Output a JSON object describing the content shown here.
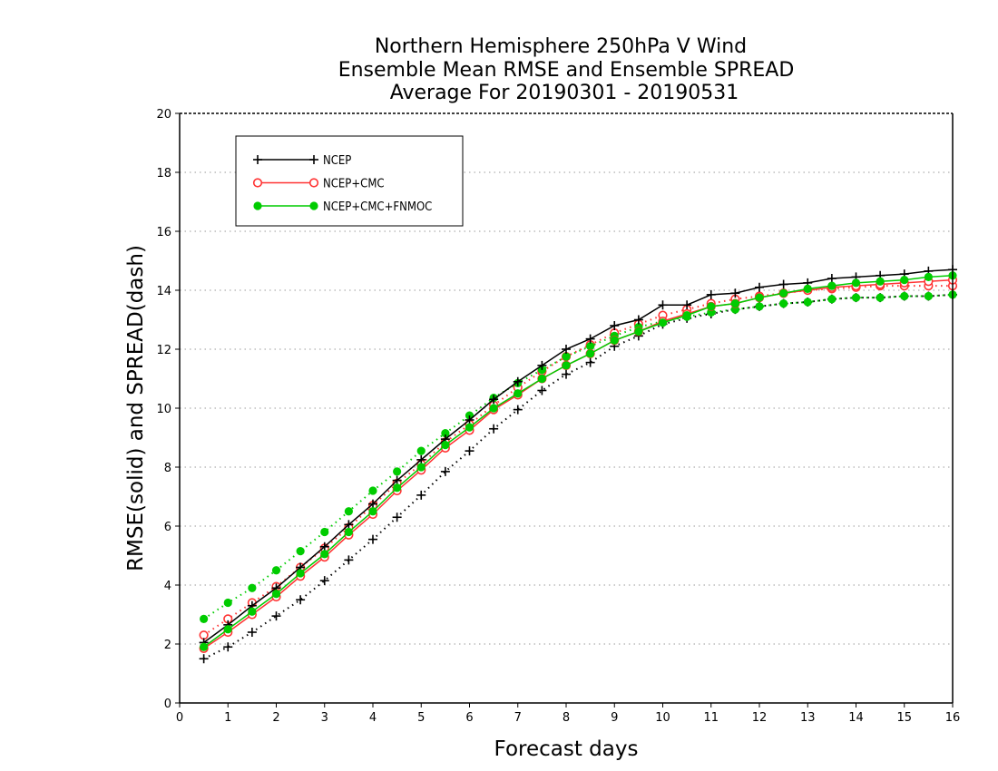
{
  "chart_data": {
    "type": "line",
    "title_lines": [
      "Northern Hemisphere 250hPa V Wind",
      "Ensemble Mean RMSE and Ensemble SPREAD",
      "Average For 20190301 - 20190531"
    ],
    "xlabel": "Forecast days",
    "ylabel": "RMSE(solid) and SPREAD(dash)",
    "xlim": [
      0,
      16
    ],
    "ylim": [
      0,
      20
    ],
    "x_ticks": [
      0,
      1,
      2,
      3,
      4,
      5,
      6,
      7,
      8,
      9,
      10,
      11,
      12,
      13,
      14,
      15,
      16
    ],
    "y_ticks": [
      0,
      2,
      4,
      6,
      8,
      10,
      12,
      14,
      16,
      18,
      20
    ],
    "grid": "dotted horizontal",
    "legend_position": "top-left",
    "x": [
      0.5,
      1,
      1.5,
      2,
      2.5,
      3,
      3.5,
      4,
      4.5,
      5,
      5.5,
      6,
      6.5,
      7,
      7.5,
      8,
      8.5,
      9,
      9.5,
      10,
      10.5,
      11,
      11.5,
      12,
      12.5,
      13,
      13.5,
      14,
      14.5,
      15,
      15.5,
      16
    ],
    "series": [
      {
        "name": "NCEP",
        "color": "#000000",
        "marker": "plus",
        "rmse": [
          2.05,
          2.65,
          3.3,
          3.9,
          4.6,
          5.3,
          6.05,
          6.75,
          7.55,
          8.25,
          8.95,
          9.6,
          10.3,
          10.9,
          11.45,
          12.0,
          12.35,
          12.8,
          13.0,
          13.5,
          13.5,
          13.85,
          13.9,
          14.1,
          14.2,
          14.25,
          14.4,
          14.45,
          14.5,
          14.55,
          14.65,
          14.7
        ],
        "spread": [
          1.5,
          1.9,
          2.4,
          2.95,
          3.5,
          4.15,
          4.85,
          5.55,
          6.3,
          7.05,
          7.85,
          8.55,
          9.3,
          9.95,
          10.6,
          11.15,
          11.55,
          12.1,
          12.45,
          12.85,
          13.05,
          13.2,
          13.35,
          13.45,
          13.55,
          13.6,
          13.7,
          13.75,
          13.75,
          13.8,
          13.8,
          13.85
        ]
      },
      {
        "name": "NCEP+CMC",
        "color": "#ff3333",
        "marker": "open-circle",
        "rmse": [
          1.85,
          2.4,
          3.0,
          3.6,
          4.3,
          4.95,
          5.7,
          6.4,
          7.2,
          7.9,
          8.65,
          9.25,
          9.95,
          10.45,
          11.0,
          11.45,
          11.85,
          12.3,
          12.6,
          12.95,
          13.2,
          13.45,
          13.55,
          13.75,
          13.9,
          14.0,
          14.1,
          14.15,
          14.2,
          14.25,
          14.3,
          14.35
        ],
        "spread": [
          2.3,
          2.85,
          3.4,
          3.95,
          4.6,
          5.25,
          5.95,
          6.7,
          7.45,
          8.1,
          8.85,
          9.45,
          10.1,
          10.7,
          11.25,
          11.75,
          12.15,
          12.55,
          12.85,
          13.15,
          13.35,
          13.55,
          13.7,
          13.8,
          13.9,
          14.0,
          14.05,
          14.1,
          14.15,
          14.15,
          14.15,
          14.15
        ]
      },
      {
        "name": "NCEP+CMC+FNMOC",
        "color": "#00cc00",
        "marker": "filled-circle",
        "rmse": [
          1.9,
          2.5,
          3.1,
          3.7,
          4.4,
          5.05,
          5.8,
          6.5,
          7.3,
          8.0,
          8.75,
          9.35,
          10.0,
          10.5,
          11.0,
          11.45,
          11.85,
          12.3,
          12.6,
          12.9,
          13.15,
          13.45,
          13.55,
          13.75,
          13.9,
          14.05,
          14.15,
          14.25,
          14.3,
          14.35,
          14.45,
          14.5
        ],
        "spread": [
          2.85,
          3.4,
          3.9,
          4.5,
          5.15,
          5.8,
          6.5,
          7.2,
          7.85,
          8.55,
          9.15,
          9.75,
          10.35,
          10.85,
          11.3,
          11.75,
          12.1,
          12.45,
          12.75,
          12.95,
          13.1,
          13.25,
          13.35,
          13.45,
          13.55,
          13.6,
          13.7,
          13.75,
          13.75,
          13.8,
          13.8,
          13.85
        ]
      }
    ]
  }
}
